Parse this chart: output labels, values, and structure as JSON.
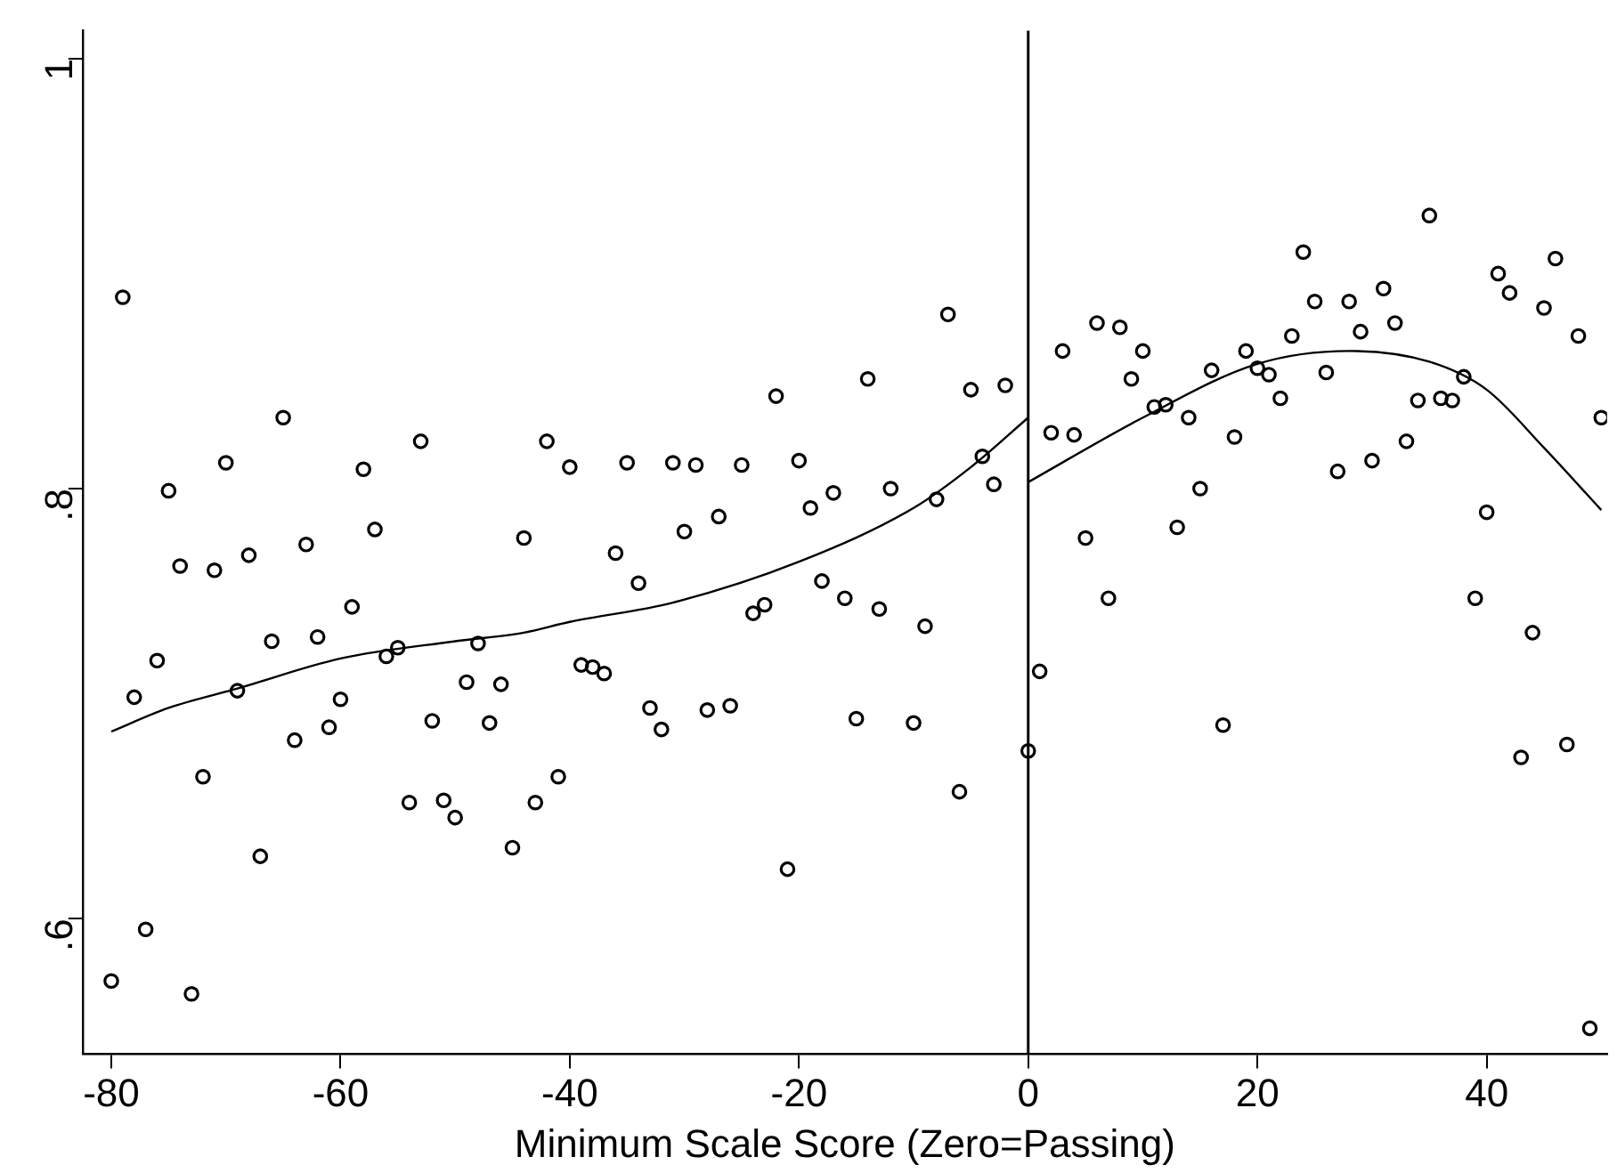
{
  "chart_data": {
    "type": "scatter",
    "xlabel": "Minimum Scale Score (Zero=Passing)",
    "xlim": [
      -82.5,
      50.5
    ],
    "ylim": [
      0.537,
      1.013
    ],
    "xticks": [
      -80,
      -60,
      -40,
      -20,
      0,
      20,
      40
    ],
    "yticks": [
      {
        "value": 0.6,
        "label": ".6"
      },
      {
        "value": 0.8,
        "label": ".8"
      },
      1
    ],
    "grid": false,
    "legend": false,
    "marker": "circle",
    "ref_lines": [
      {
        "axis": "x",
        "value": 0,
        "color": "#000000"
      }
    ],
    "series": [
      {
        "type": "scatter",
        "color": "#000000",
        "x": [
          -80,
          -79,
          -78,
          -77,
          -76,
          -75,
          -74,
          -73,
          -72,
          -71,
          -70,
          -69,
          -68,
          -67,
          -66,
          -65,
          -64,
          -63,
          -62,
          -61,
          -60,
          -59,
          -58,
          -57,
          -56,
          -55,
          -54,
          -53,
          -52,
          -51,
          -50,
          -49,
          -48,
          -47,
          -46,
          -45,
          -44,
          -43,
          -42,
          -41,
          -40,
          -39,
          -38,
          -37,
          -36,
          -35,
          -34,
          -33,
          -32,
          -31,
          -30,
          -29,
          -28,
          -27,
          -26,
          -25,
          -24,
          -23,
          -22,
          -21,
          -20,
          -19,
          -18,
          -17,
          -16,
          -15,
          -14,
          -13,
          -12,
          -10,
          -9,
          -8,
          -7,
          -6,
          -5,
          -4,
          -3,
          -2,
          0,
          1,
          2,
          3,
          4,
          5,
          6,
          7,
          8,
          9,
          10,
          11,
          12,
          13,
          14,
          15,
          16,
          17,
          18,
          19,
          20,
          21,
          22,
          23,
          24,
          25,
          26,
          27,
          28,
          29,
          30,
          31,
          32,
          33,
          34,
          35,
          36,
          37,
          38,
          39,
          40,
          41,
          42,
          43,
          44,
          45,
          46,
          47,
          48,
          49,
          50
        ],
        "values": [
          0.571,
          0.889,
          0.703,
          0.595,
          0.72,
          0.799,
          0.764,
          0.565,
          0.666,
          0.762,
          0.812,
          0.706,
          0.769,
          0.629,
          0.729,
          0.833,
          0.683,
          0.774,
          0.731,
          0.689,
          0.702,
          0.745,
          0.809,
          0.781,
          0.722,
          0.726,
          0.654,
          0.822,
          0.692,
          0.655,
          0.647,
          0.71,
          0.728,
          0.691,
          0.709,
          0.633,
          0.777,
          0.654,
          0.822,
          0.666,
          0.81,
          0.718,
          0.717,
          0.714,
          0.77,
          0.812,
          0.756,
          0.698,
          0.688,
          0.812,
          0.78,
          0.811,
          0.697,
          0.787,
          0.699,
          0.811,
          0.742,
          0.746,
          0.843,
          0.623,
          0.813,
          0.791,
          0.757,
          0.798,
          0.749,
          0.693,
          0.851,
          0.744,
          0.8,
          0.691,
          0.736,
          0.795,
          0.881,
          0.659,
          0.846,
          0.815,
          0.802,
          0.848,
          0.678,
          0.715,
          0.826,
          0.864,
          0.825,
          0.777,
          0.877,
          0.749,
          0.875,
          0.851,
          0.864,
          0.838,
          0.839,
          0.782,
          0.833,
          0.8,
          0.855,
          0.69,
          0.824,
          0.864,
          0.856,
          0.853,
          0.842,
          0.871,
          0.91,
          0.887,
          0.854,
          0.808,
          0.887,
          0.873,
          0.813,
          0.893,
          0.877,
          0.822,
          0.841,
          0.927,
          0.842,
          0.841,
          0.852,
          0.749,
          0.789,
          0.9,
          0.891,
          0.675,
          0.733,
          0.884,
          0.907,
          0.681,
          0.871,
          0.549,
          0.833
        ]
      },
      {
        "type": "line",
        "color": "#000000",
        "marker": "none",
        "x": [
          -80,
          -75,
          -69,
          -60,
          -50,
          -44,
          -40,
          -31,
          -20,
          -10,
          -5,
          0
        ],
        "values": [
          0.687,
          0.698,
          0.707,
          0.721,
          0.729,
          0.733,
          0.738,
          0.747,
          0.766,
          0.791,
          0.81,
          0.833
        ]
      },
      {
        "type": "line",
        "color": "#000000",
        "marker": "none",
        "x": [
          0,
          10,
          20,
          28,
          35,
          40,
          45,
          50
        ],
        "values": [
          0.803,
          0.833,
          0.858,
          0.864,
          0.859,
          0.846,
          0.819,
          0.79
        ]
      }
    ]
  }
}
